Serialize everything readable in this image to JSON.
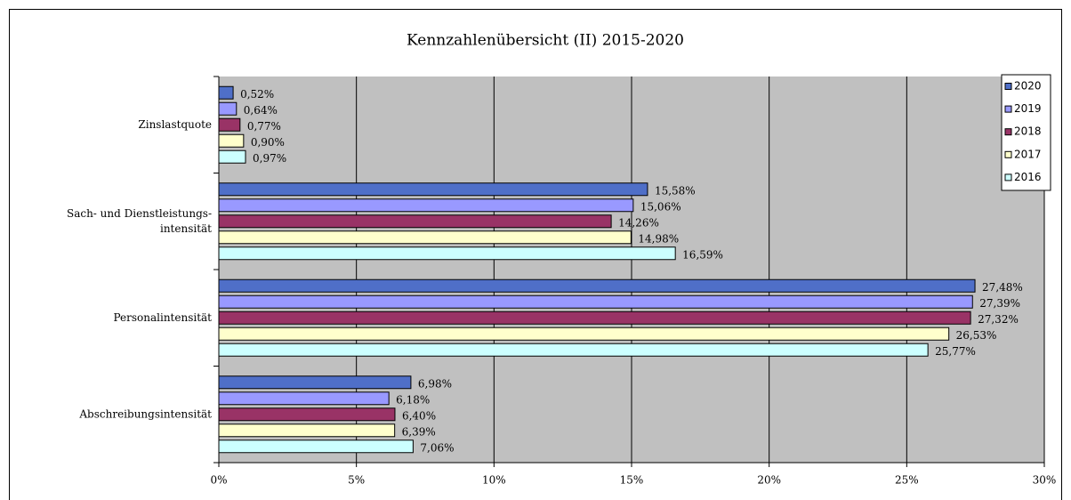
{
  "chart_data": {
    "type": "hbar",
    "title": "Kennzahlenübersicht (II) 2015-2020",
    "categories": [
      "Zinslastquote",
      [
        "Sach- und Dienstleistungs-",
        "intensität"
      ],
      "Personalintensität",
      "Abschreibungsintensität"
    ],
    "series": [
      {
        "name": "2020",
        "color": "#4f6fc8",
        "values": [
          0.52,
          15.58,
          27.48,
          6.98
        ],
        "value_labels": [
          "0,52%",
          "15,58%",
          "27,48%",
          "6,98%"
        ]
      },
      {
        "name": "2019",
        "color": "#9999ff",
        "values": [
          0.64,
          15.06,
          27.39,
          6.18
        ],
        "value_labels": [
          "0,64%",
          "15,06%",
          "27,39%",
          "6,18%"
        ]
      },
      {
        "name": "2018",
        "color": "#993366",
        "values": [
          0.77,
          14.26,
          27.32,
          6.4
        ],
        "value_labels": [
          "0,77%",
          "14,26%",
          "27,32%",
          "6,40%"
        ]
      },
      {
        "name": "2017",
        "color": "#ffffcc",
        "values": [
          0.9,
          14.98,
          26.53,
          6.39
        ],
        "value_labels": [
          "0,90%",
          "14,98%",
          "26,53%",
          "6,39%"
        ]
      },
      {
        "name": "2016",
        "color": "#ccffff",
        "values": [
          0.97,
          16.59,
          25.77,
          7.06
        ],
        "value_labels": [
          "0,97%",
          "16,59%",
          "25,77%",
          "7,06%"
        ]
      }
    ],
    "xlim": [
      0,
      30
    ],
    "xticks": [
      {
        "value": 0,
        "label": "0%"
      },
      {
        "value": 5,
        "label": "5%"
      },
      {
        "value": 10,
        "label": "10%"
      },
      {
        "value": 15,
        "label": "15%"
      },
      {
        "value": 20,
        "label": "20%"
      },
      {
        "value": 25,
        "label": "25%"
      },
      {
        "value": 30,
        "label": "30%"
      }
    ],
    "grid": true,
    "legend": "right",
    "plot_background": "#c0c0c0"
  }
}
